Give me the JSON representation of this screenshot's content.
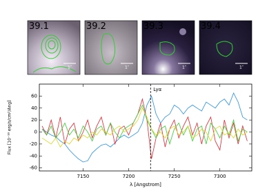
{
  "panels": [
    {
      "label": "39.1",
      "color": "#3399ff",
      "scale": "1″"
    },
    {
      "label": "39.2",
      "color": "#33cc33",
      "scale": "1″"
    },
    {
      "label": "39.3",
      "color": "#ff2020",
      "scale": "1″"
    },
    {
      "label": "39.4",
      "color": "#ffff33",
      "scale": "1″"
    }
  ],
  "chart_data": {
    "type": "line",
    "xlabel": "λ [Angstrom]",
    "ylabel": "Flux [10⁻¹⁸ erg/s/cm²/Ang]",
    "annotation": {
      "text": "Lyα",
      "x": 7224
    },
    "x": [
      7105,
      7110,
      7115,
      7120,
      7125,
      7130,
      7135,
      7140,
      7145,
      7150,
      7155,
      7160,
      7165,
      7170,
      7175,
      7180,
      7185,
      7190,
      7195,
      7200,
      7205,
      7210,
      7215,
      7220,
      7225,
      7230,
      7235,
      7240,
      7245,
      7250,
      7255,
      7260,
      7265,
      7270,
      7275,
      7280,
      7285,
      7290,
      7295,
      7300,
      7305,
      7310,
      7315,
      7320,
      7325,
      7330
    ],
    "series": [
      {
        "color": "#1f8fe8",
        "values": [
          5,
          0,
          -5,
          -8,
          -15,
          -20,
          -30,
          -38,
          -45,
          -50,
          -48,
          -35,
          -28,
          -22,
          -20,
          -25,
          -18,
          -10,
          -5,
          -10,
          -5,
          0,
          15,
          45,
          60,
          30,
          15,
          25,
          30,
          45,
          40,
          30,
          40,
          45,
          40,
          35,
          50,
          45,
          40,
          50,
          55,
          45,
          65,
          50,
          25,
          20
        ]
      },
      {
        "color": "#e8202a",
        "values": [
          10,
          -5,
          20,
          -10,
          25,
          -20,
          5,
          15,
          -15,
          0,
          20,
          -10,
          10,
          25,
          -5,
          15,
          -20,
          5,
          10,
          -5,
          15,
          30,
          55,
          20,
          -45,
          -10,
          15,
          -25,
          5,
          20,
          -10,
          10,
          25,
          -5,
          15,
          -20,
          10,
          25,
          -15,
          -30,
          20,
          -10,
          15,
          -20,
          10,
          -15
        ]
      },
      {
        "color": "#33cc33",
        "values": [
          5,
          -5,
          10,
          -10,
          0,
          15,
          -5,
          5,
          -10,
          10,
          0,
          -15,
          5,
          10,
          -5,
          15,
          0,
          -10,
          5,
          10,
          15,
          30,
          45,
          20,
          5,
          -10,
          5,
          10,
          -20,
          5,
          15,
          -5,
          10,
          -15,
          5,
          10,
          -20,
          15,
          5,
          -10,
          10,
          -5,
          20,
          -15,
          5,
          0
        ]
      },
      {
        "color": "#d8d820",
        "values": [
          -10,
          -15,
          -20,
          -10,
          -25,
          -15,
          -20,
          -10,
          -15,
          -5,
          -10,
          0,
          -5,
          5,
          0,
          -5,
          5,
          10,
          0,
          5,
          10,
          20,
          40,
          25,
          5,
          -5,
          0,
          -10,
          5,
          10,
          -5,
          0,
          10,
          -10,
          -5,
          5,
          0,
          -15,
          5,
          10,
          -5,
          0,
          -10,
          5,
          -5,
          0
        ]
      }
    ],
    "xlim": [
      7102,
      7335
    ],
    "ylim": [
      -65,
      80
    ],
    "xticks": [
      7150,
      7200,
      7250,
      7300
    ],
    "yticks": [
      -60,
      -40,
      -20,
      0,
      20,
      40,
      60
    ]
  }
}
